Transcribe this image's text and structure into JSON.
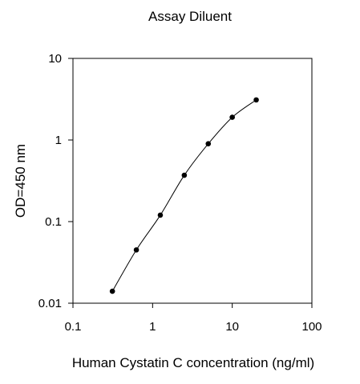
{
  "chart_data": {
    "type": "line",
    "title": "Assay Diluent",
    "xlabel": "Human Cystatin C concentration (ng/ml)",
    "ylabel": "OD=450 nm",
    "x_scale": "log",
    "y_scale": "log",
    "xlim": [
      0.1,
      100
    ],
    "ylim": [
      0.01,
      10
    ],
    "x_ticks": [
      "0.1",
      "1",
      "10",
      "100"
    ],
    "y_ticks": [
      "0.01",
      "0.1",
      "1",
      "10"
    ],
    "grid": false,
    "legend": "none",
    "series": [
      {
        "x": [
          0.3125,
          0.625,
          1.25,
          2.5,
          5,
          10,
          20
        ],
        "y": [
          0.014,
          0.045,
          0.12,
          0.37,
          0.9,
          1.9,
          3.1
        ],
        "color": "#000000",
        "marker": "circle"
      }
    ]
  }
}
